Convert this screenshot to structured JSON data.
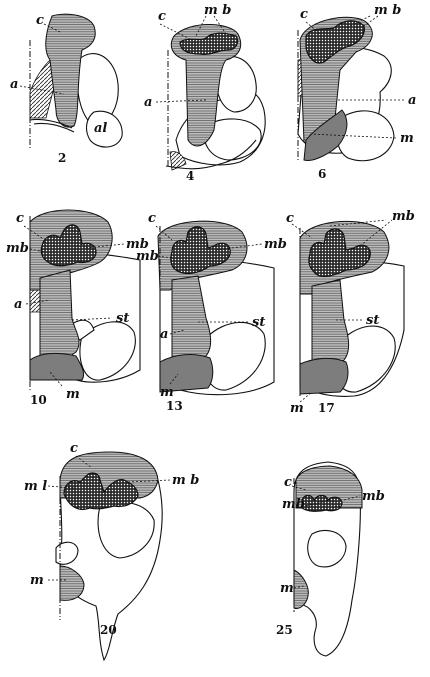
{
  "figures": [
    {
      "number": "2",
      "labels": [
        "c",
        "a",
        "al"
      ]
    },
    {
      "number": "4",
      "labels": [
        "c",
        "m b",
        "a"
      ]
    },
    {
      "number": "6",
      "labels": [
        "c",
        "m b",
        "a",
        "m"
      ]
    },
    {
      "number": "10",
      "labels": [
        "c",
        "mb",
        "mb",
        "a",
        "st",
        "m"
      ]
    },
    {
      "number": "13",
      "labels": [
        "c",
        "mb",
        "mb",
        "st",
        "a",
        "m"
      ]
    },
    {
      "number": "17",
      "labels": [
        "c",
        "mb",
        "st",
        "m"
      ]
    },
    {
      "number": "20",
      "labels": [
        "c",
        "m l",
        "m b",
        "m"
      ]
    },
    {
      "number": "25",
      "labels": [
        "c",
        "mb",
        "mb",
        "m"
      ]
    }
  ]
}
